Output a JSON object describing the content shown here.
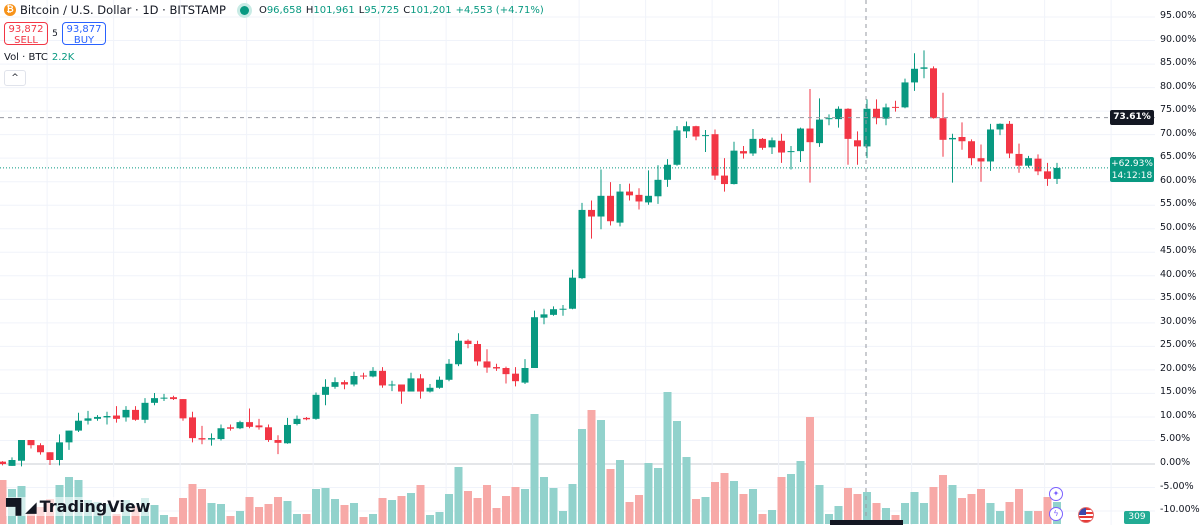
{
  "header": {
    "symbol_title": "Bitcoin / U.S. Dollar · 1D · BITSTAMP",
    "ohlc": {
      "o_label": "O",
      "o": "96,658",
      "h_label": "H",
      "h": "101,961",
      "l_label": "L",
      "l": "95,725",
      "c_label": "C",
      "c": "101,201",
      "change": "+4,553 (+4.71%)"
    },
    "icon": "bitcoin-icon"
  },
  "trade": {
    "sell_price": "93,872",
    "sell_label": "SELL",
    "spread": "5",
    "buy_price": "93,877",
    "buy_label": "BUY"
  },
  "volume_legend": {
    "label": "Vol · BTC",
    "value": "2.2K"
  },
  "collapse_glyph": "^",
  "price_tags": {
    "crosshair": "73.61%",
    "last": "+62.93%",
    "countdown": "14:12:18",
    "volume_tag": "309"
  },
  "brand": {
    "name": "TradingView"
  },
  "colors": {
    "up": "#089981",
    "down": "#f23645",
    "vol_up": "#92d2cc",
    "vol_down": "#f7a9a7",
    "crosshair_tag": "#131722"
  },
  "chart_data": {
    "type": "candlestick",
    "title": "Bitcoin / U.S. Dollar · 1D · BITSTAMP",
    "y_scale": "percent",
    "ylim": [
      -11,
      98
    ],
    "y_ticks": [
      "95.00%",
      "90.00%",
      "85.00%",
      "80.00%",
      "75.00%",
      "70.00%",
      "65.00%",
      "60.00%",
      "55.00%",
      "50.00%",
      "45.00%",
      "40.00%",
      "35.00%",
      "30.00%",
      "25.00%",
      "20.00%",
      "15.00%",
      "10.00%",
      "5.00%",
      "0.00%",
      "-5.00%",
      "-10.00%"
    ],
    "y_tick_values": [
      95,
      90,
      85,
      80,
      75,
      70,
      65,
      60,
      55,
      50,
      45,
      40,
      35,
      30,
      25,
      20,
      15,
      10,
      5,
      0,
      -5,
      -10
    ],
    "grid": true,
    "crosshair_value": 73.61,
    "last_value": 62.93,
    "candles_ohlc": [
      [
        0.5,
        0.6,
        -0.3,
        0
      ],
      [
        -0.4,
        1.4,
        -0.4,
        0.85
      ],
      [
        0.7,
        5.1,
        -0.5,
        5.1
      ],
      [
        5.1,
        5.1,
        3.3,
        4.0
      ],
      [
        4.0,
        4.4,
        2.0,
        2.5
      ],
      [
        2.5,
        2.5,
        -0.2,
        0.85
      ],
      [
        0.85,
        6.3,
        -0.3,
        4.6
      ],
      [
        4.6,
        7.1,
        3.0,
        7.1
      ],
      [
        7.1,
        10.9,
        6.8,
        9.2
      ],
      [
        9.2,
        11.3,
        8.4,
        9.7
      ],
      [
        9.6,
        10.4,
        9.2,
        10.0
      ],
      [
        9.9,
        11.1,
        8.4,
        10.2
      ],
      [
        10.3,
        12.3,
        8.8,
        9.6
      ],
      [
        9.9,
        12.3,
        9.0,
        11.5
      ],
      [
        11.5,
        12.3,
        9.2,
        9.4
      ],
      [
        9.4,
        14.0,
        8.7,
        13.0
      ],
      [
        13.0,
        15.1,
        12.5,
        14.0
      ],
      [
        14.0,
        14.9,
        13.4,
        14.1
      ],
      [
        14.2,
        14.5,
        13.6,
        13.8
      ],
      [
        13.8,
        13.8,
        9.2,
        9.7
      ],
      [
        9.9,
        11.1,
        4.6,
        5.5
      ],
      [
        5.5,
        8.1,
        4.2,
        5.2
      ],
      [
        5.2,
        6.5,
        3.9,
        5.5
      ],
      [
        5.3,
        8.4,
        5.0,
        7.6
      ],
      [
        7.8,
        8.4,
        7.1,
        7.5
      ],
      [
        7.6,
        9.2,
        7.4,
        8.9
      ],
      [
        8.9,
        11.8,
        7.6,
        7.9
      ],
      [
        8.2,
        9.6,
        7.3,
        7.8
      ],
      [
        7.8,
        8.4,
        4.7,
        5.1
      ],
      [
        5.1,
        6.1,
        2.1,
        4.5
      ],
      [
        4.4,
        9.8,
        4.3,
        8.3
      ],
      [
        8.5,
        10.3,
        8.2,
        9.6
      ],
      [
        9.8,
        10.0,
        9.3,
        9.5
      ],
      [
        9.6,
        15.2,
        9.4,
        14.7
      ],
      [
        14.7,
        18.0,
        12.5,
        16.4
      ],
      [
        16.4,
        18.4,
        16.0,
        17.4
      ],
      [
        17.4,
        17.8,
        15.9,
        16.9
      ],
      [
        16.9,
        19.6,
        16.5,
        18.7
      ],
      [
        18.8,
        19.4,
        18.0,
        18.6
      ],
      [
        18.6,
        20.6,
        18.4,
        19.8
      ],
      [
        19.8,
        20.6,
        16.2,
        16.7
      ],
      [
        16.7,
        17.7,
        15.5,
        16.9
      ],
      [
        16.9,
        16.9,
        12.8,
        15.4
      ],
      [
        15.4,
        19.4,
        15.4,
        18.2
      ],
      [
        18.2,
        19.1,
        13.9,
        15.4
      ],
      [
        15.4,
        17.0,
        15.2,
        16.2
      ],
      [
        16.2,
        18.6,
        16.0,
        17.9
      ],
      [
        17.9,
        22.3,
        17.6,
        21.3
      ],
      [
        21.2,
        27.8,
        20.8,
        26.2
      ],
      [
        26.2,
        26.5,
        24.6,
        25.5
      ],
      [
        25.5,
        26.2,
        20.9,
        21.8
      ],
      [
        21.8,
        24.4,
        19.4,
        20.5
      ],
      [
        20.6,
        21.3,
        19.8,
        20.3
      ],
      [
        20.4,
        20.7,
        17.1,
        19.1
      ],
      [
        19.2,
        20.6,
        16.5,
        17.6
      ],
      [
        17.3,
        22.3,
        17.0,
        20.4
      ],
      [
        20.4,
        32.6,
        20.4,
        31.2
      ],
      [
        31.1,
        33.0,
        29.7,
        31.8
      ],
      [
        31.7,
        33.5,
        31.5,
        32.9
      ],
      [
        32.9,
        33.8,
        31.5,
        33.0
      ],
      [
        33.0,
        41.3,
        32.9,
        39.6
      ],
      [
        39.5,
        55.5,
        39.3,
        54.0
      ],
      [
        54.0,
        56.0,
        47.9,
        52.6
      ],
      [
        52.6,
        62.6,
        49.9,
        57.0
      ],
      [
        57.0,
        59.9,
        50.7,
        51.6
      ],
      [
        51.3,
        59.5,
        50.5,
        57.9
      ],
      [
        57.9,
        59.6,
        56.0,
        57.1
      ],
      [
        57.2,
        58.6,
        54.1,
        55.8
      ],
      [
        55.6,
        62.4,
        55.1,
        57.0
      ],
      [
        56.9,
        63.5,
        55.3,
        60.4
      ],
      [
        60.4,
        64.8,
        58.9,
        63.6
      ],
      [
        63.6,
        71.8,
        63.4,
        70.9
      ],
      [
        70.7,
        72.8,
        69.3,
        71.8
      ],
      [
        71.8,
        71.9,
        68.8,
        69.6
      ],
      [
        69.7,
        71.0,
        66.3,
        69.9
      ],
      [
        70.1,
        71.1,
        60.4,
        61.3
      ],
      [
        61.3,
        65.0,
        57.9,
        59.5
      ],
      [
        59.5,
        68.5,
        59.4,
        66.6
      ],
      [
        66.5,
        67.6,
        64.9,
        66.0
      ],
      [
        66.0,
        71.2,
        65.5,
        69.1
      ],
      [
        69.1,
        69.3,
        66.8,
        67.2
      ],
      [
        67.3,
        69.4,
        65.9,
        68.8
      ],
      [
        68.7,
        70.2,
        64.0,
        66.2
      ],
      [
        66.3,
        67.6,
        62.6,
        66.5
      ],
      [
        66.5,
        71.5,
        64.2,
        71.3
      ],
      [
        71.3,
        79.7,
        59.8,
        68.4
      ],
      [
        68.2,
        77.7,
        67.4,
        73.2
      ],
      [
        73.3,
        74.3,
        72.0,
        73.5
      ],
      [
        73.3,
        76.0,
        71.5,
        75.5
      ],
      [
        75.5,
        75.6,
        63.6,
        69.1
      ],
      [
        68.8,
        70.7,
        63.6,
        67.5
      ],
      [
        67.5,
        77.5,
        65.0,
        75.5
      ],
      [
        75.5,
        77.5,
        72.2,
        73.5
      ],
      [
        73.4,
        76.6,
        72.0,
        75.8
      ],
      [
        75.9,
        77.2,
        74.9,
        75.7
      ],
      [
        75.8,
        81.9,
        75.6,
        81.1
      ],
      [
        81.1,
        87.3,
        79.3,
        84.0
      ],
      [
        84.0,
        87.9,
        82.0,
        84.3
      ],
      [
        84.1,
        84.5,
        73.4,
        73.5
      ],
      [
        73.5,
        78.9,
        65.3,
        68.9
      ],
      [
        69.0,
        70.2,
        59.8,
        69.3
      ],
      [
        69.5,
        72.6,
        66.8,
        68.6
      ],
      [
        68.6,
        69.0,
        63.5,
        65.0
      ],
      [
        65.0,
        67.9,
        60.0,
        64.3
      ],
      [
        64.3,
        72.3,
        62.3,
        71.1
      ],
      [
        71.1,
        72.4,
        69.9,
        72.3
      ],
      [
        72.3,
        72.9,
        65.0,
        66.0
      ],
      [
        65.9,
        68.1,
        61.9,
        63.4
      ],
      [
        63.4,
        65.5,
        63.0,
        65.0
      ],
      [
        64.9,
        65.8,
        61.4,
        62.2
      ],
      [
        62.2,
        64.0,
        59.1,
        60.6
      ],
      [
        60.6,
        64.0,
        59.5,
        62.93
      ]
    ],
    "volume_k_btc": [
      4.4,
      3.5,
      3.8,
      1.1,
      1.7,
      2.5,
      3.9,
      4.7,
      4.4,
      2.4,
      2.2,
      2.0,
      1.0,
      2.4,
      1.8,
      2.6,
      1.9,
      0.9,
      0.7,
      2.6,
      4.0,
      3.5,
      2.1,
      2.0,
      0.8,
      1.3,
      2.7,
      1.7,
      2.0,
      2.7,
      2.3,
      1.0,
      1.0,
      3.5,
      3.6,
      2.5,
      1.9,
      2.1,
      0.7,
      1.0,
      2.6,
      2.4,
      2.8,
      3.1,
      3.9,
      0.9,
      1.2,
      3.0,
      5.7,
      3.3,
      2.6,
      3.9,
      1.6,
      2.8,
      3.7,
      3.5,
      11.0,
      4.7,
      3.6,
      1.3,
      4.0,
      9.5,
      11.4,
      10.4,
      5.5,
      6.4,
      2.2,
      2.9,
      6.1,
      5.6,
      13.2,
      10.3,
      6.7,
      2.5,
      2.7,
      4.2,
      5.1,
      4.3,
      3.0,
      3.5,
      1.0,
      1.4,
      4.7,
      5.0,
      6.3,
      10.7,
      3.9,
      1.0,
      1.8,
      3.6,
      3.0,
      3.2,
      2.1,
      1.6,
      0.9,
      2.1,
      3.2,
      2.1,
      3.7,
      4.9,
      3.9,
      2.6,
      3.0,
      3.5,
      2.1,
      1.3,
      2.2,
      3.5,
      1.3,
      1.3,
      2.7,
      2.2
    ]
  }
}
